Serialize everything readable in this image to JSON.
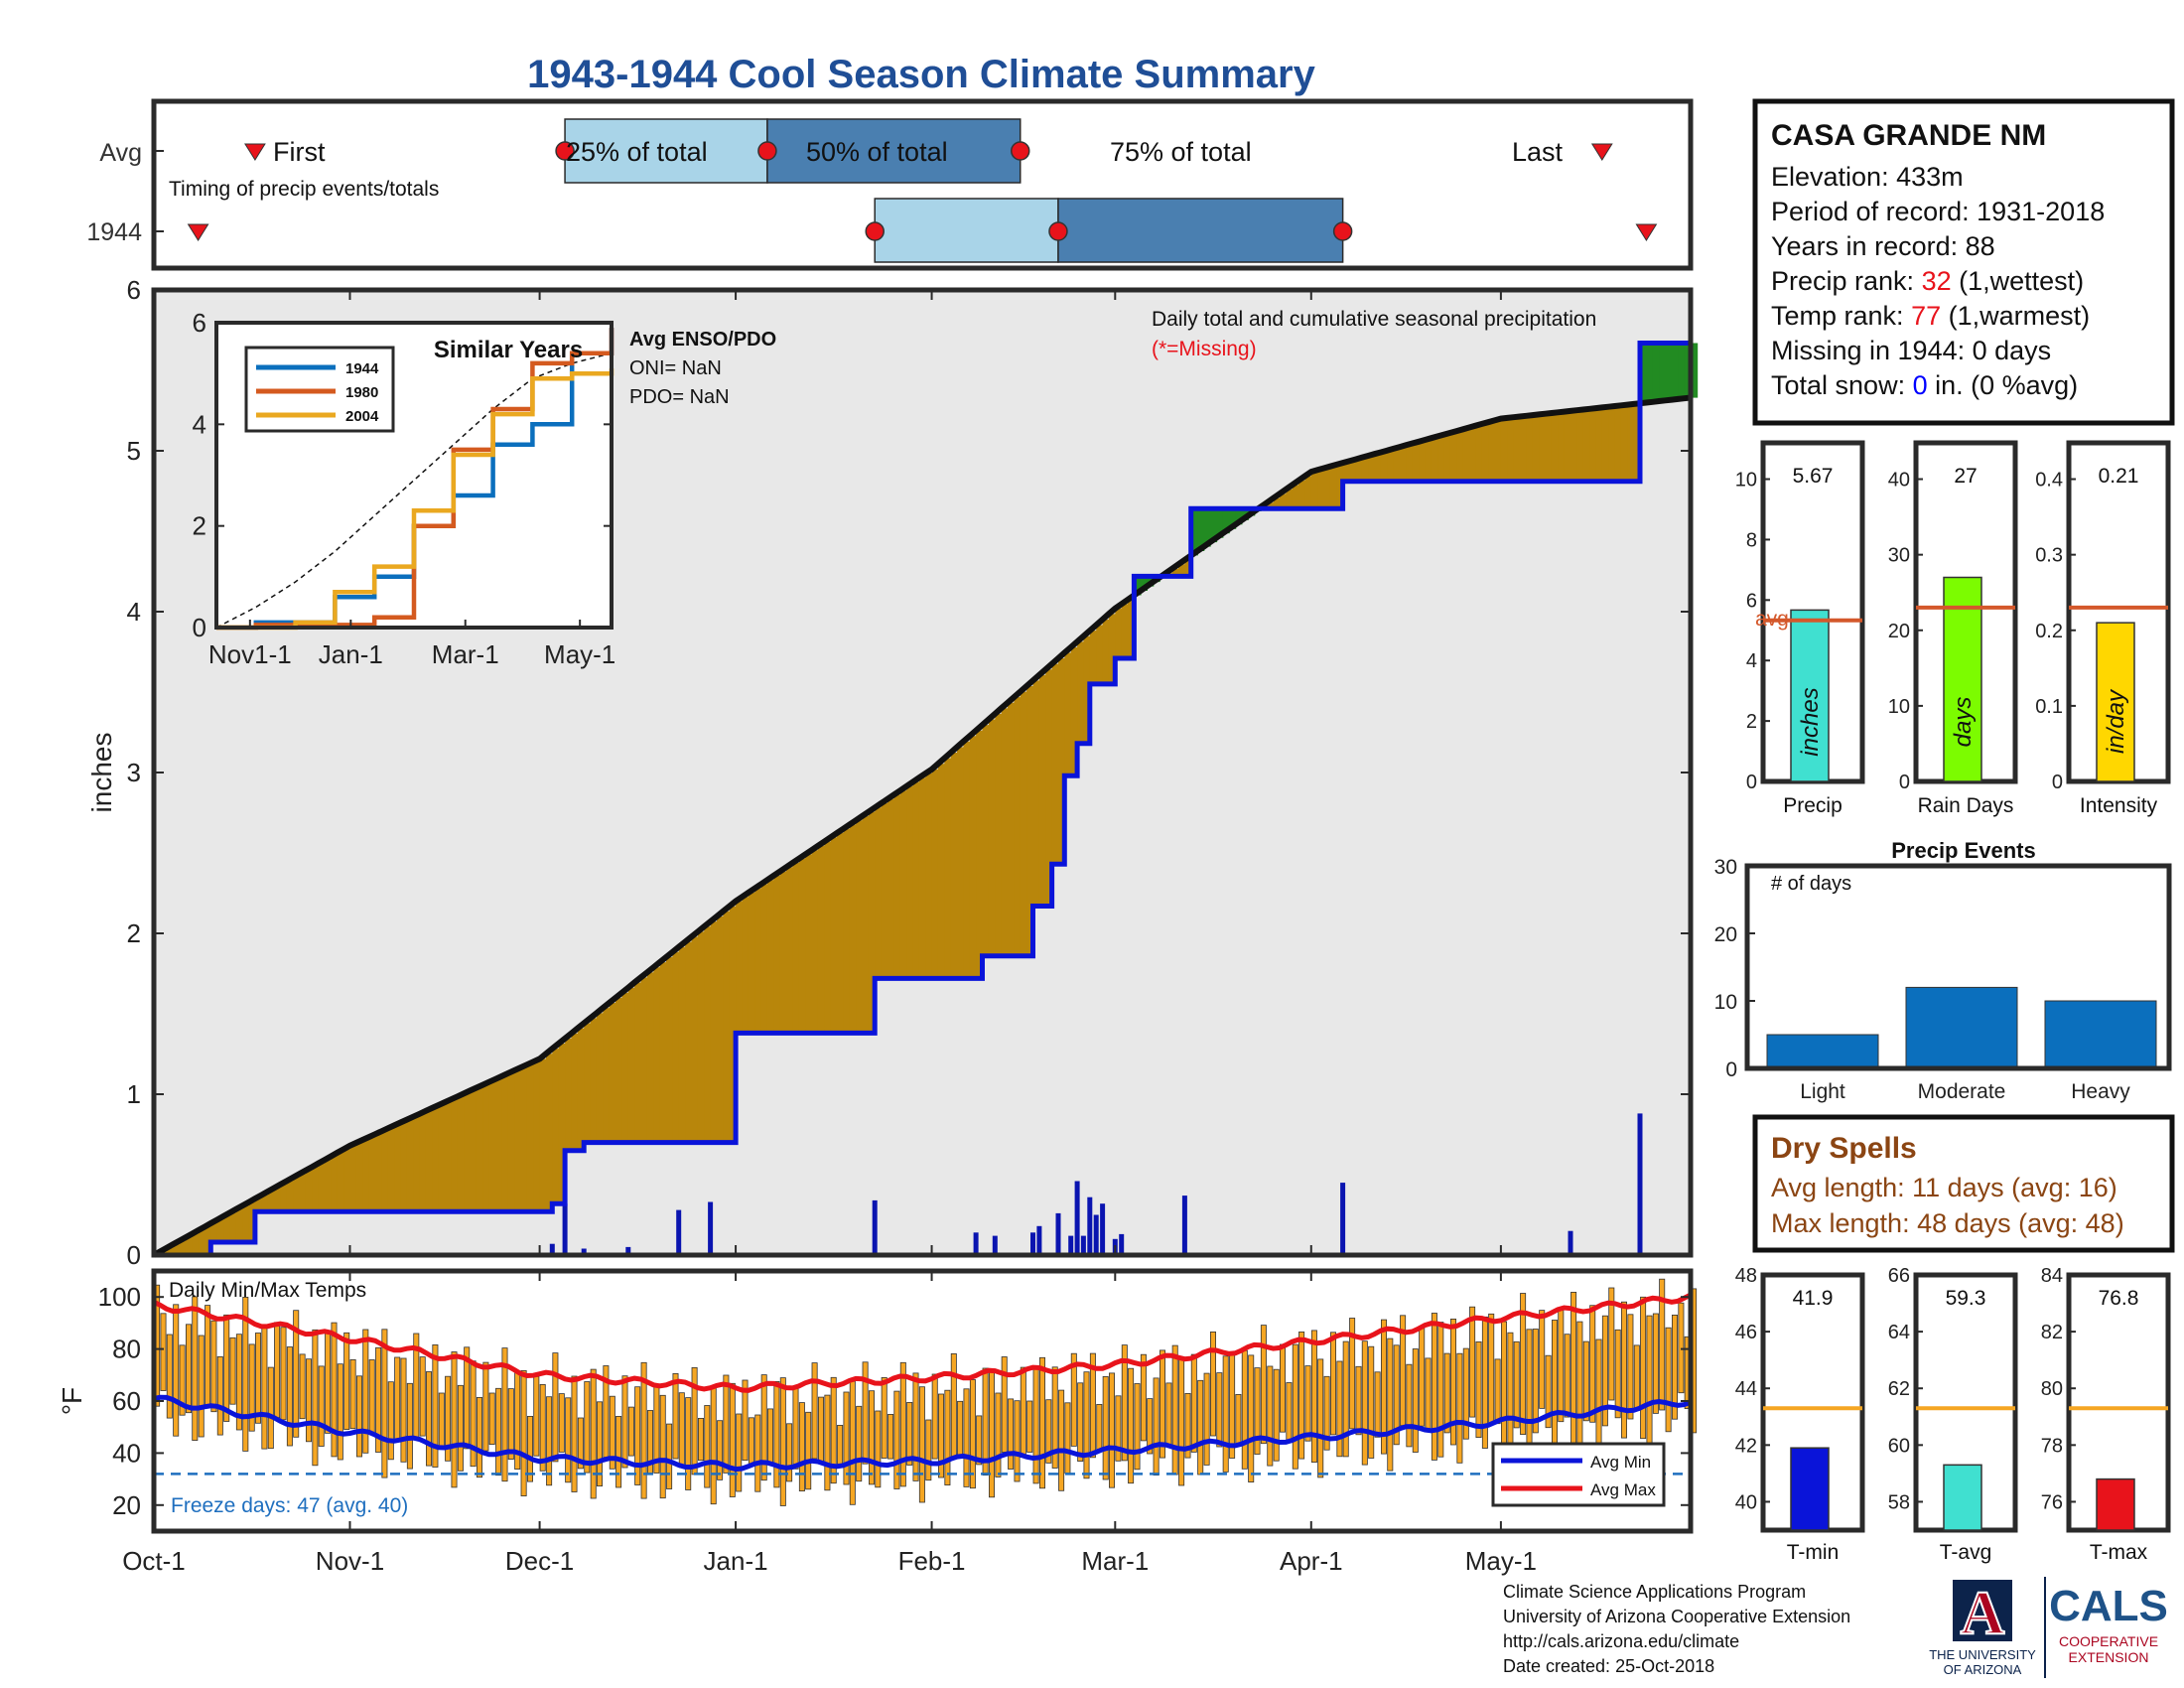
{
  "title": "1943-1944 Cool Season Climate Summary",
  "colors": {
    "title": "#1f4e96",
    "frame": "#2a2a2a",
    "light_blue": "#a9d4e8",
    "mid_blue": "#4a7fb0",
    "marker_red": "#e8131b",
    "brown": "#b8860b",
    "light_gray": "#e8e8e8",
    "green": "#228b22",
    "obs_blue": "#0a14d9",
    "avg_orange": "#d4582b",
    "precip_bar": "#40e0d0",
    "days_bar": "#7cfc00",
    "intensity_bar": "#ffd700",
    "event_bar": "#0b6fbd",
    "temp_bar": "#f5a623",
    "dry_spell_text": "#8b4513",
    "rank_red": "#e8131b",
    "snow_blue": "#0000ff",
    "freeze_blue": "#1f6fbf",
    "tavg_orange": "#f5a623"
  },
  "timing_panel": {
    "rows": [
      "Avg",
      "1944"
    ],
    "caption": "Timing of precip events/totals",
    "labels": {
      "first": "First",
      "p25": "25% of total",
      "p50": "50% of total",
      "p75": "75% of total",
      "last": "Last"
    }
  },
  "main_panel": {
    "ylabel": "inches",
    "yticks": [
      "0",
      "1",
      "2",
      "3",
      "4",
      "5",
      "6"
    ],
    "caption": "Daily total and cumulative seasonal precipitation",
    "missing_note": "(*=Missing)"
  },
  "inset": {
    "title": "Similar Years",
    "legend": [
      "1944",
      "1980",
      "2004"
    ],
    "yticks": [
      "0",
      "2",
      "4",
      "6"
    ],
    "xticks": [
      "Nov1-1",
      "Jan-1",
      "Mar-1",
      "May-1"
    ],
    "enso_title": "Avg ENSO/PDO",
    "oni": "ONI= NaN",
    "pdo": "PDO= NaN"
  },
  "temp_panel": {
    "title": "Daily Min/Max Temps",
    "ylabel": "°F",
    "yticks": [
      "20",
      "40",
      "60",
      "80",
      "100"
    ],
    "freeze": "Freeze days: 47 (avg. 40)",
    "legend": [
      "Avg Min",
      "Avg Max"
    ]
  },
  "xaxis": {
    "ticks": [
      "Oct-1",
      "Nov-1",
      "Dec-1",
      "Jan-1",
      "Feb-1",
      "Mar-1",
      "Apr-1",
      "May-1"
    ]
  },
  "station": {
    "name": "CASA GRANDE NM",
    "elevation": "Elevation: 433m",
    "period": "Period of record: 1931-2018",
    "years": "Years in record: 88",
    "precip_rank_label": "Precip rank: ",
    "precip_rank_value": "32",
    "precip_rank_note": " (1,wettest)",
    "temp_rank_label": "Temp rank: ",
    "temp_rank_value": "77",
    "temp_rank_note": " (1,warmest)",
    "missing": "Missing in 1944: 0 days",
    "snow_label": "Total snow: ",
    "snow_value": "0",
    "snow_note": " in. (0 %avg)"
  },
  "mini_precip": [
    {
      "label": "Precip",
      "value_text": "5.67",
      "bar_text": "inches",
      "avg_text": "avg",
      "yticks": [
        "0",
        "2",
        "4",
        "6",
        "8",
        "10"
      ]
    },
    {
      "label": "Rain Days",
      "value_text": "27",
      "bar_text": "days",
      "yticks": [
        "0",
        "10",
        "20",
        "30",
        "40"
      ]
    },
    {
      "label": "Intensity",
      "value_text": "0.21",
      "bar_text": "in/day",
      "yticks": [
        "0",
        "0.1",
        "0.2",
        "0.3",
        "0.4"
      ]
    }
  ],
  "events": {
    "title": "Precip Events",
    "caption": "# of days",
    "yticks": [
      "0",
      "10",
      "20",
      "30"
    ],
    "categories": [
      "Light",
      "Moderate",
      "Heavy"
    ]
  },
  "dry_spells": {
    "title": "Dry Spells",
    "avg": "Avg length: 11 days (avg: 16)",
    "max": "Max length: 48 days (avg: 48)"
  },
  "mini_temp": [
    {
      "label": "T-min",
      "value_text": "41.9",
      "yticks": [
        "40",
        "42",
        "44",
        "46",
        "48"
      ]
    },
    {
      "label": "T-avg",
      "value_text": "59.3",
      "yticks": [
        "58",
        "60",
        "62",
        "64",
        "66"
      ]
    },
    {
      "label": "T-max",
      "value_text": "76.8",
      "yticks": [
        "76",
        "78",
        "80",
        "82",
        "84"
      ]
    }
  ],
  "footer": {
    "line1": "Climate Science Applications Program",
    "line2": "University of Arizona Cooperative Extension",
    "line3": "http://cals.arizona.edu/climate",
    "line4": " Date created: 25-Oct-2018"
  },
  "logos": {
    "ua_letter": "A",
    "ua_line1": "THE UNIVERSITY",
    "ua_line2": "OF ARIZONA",
    "cals": "CALS",
    "cals_line1": "COOPERATIVE",
    "cals_line2": "EXTENSION"
  },
  "chart_data": [
    {
      "type": "area",
      "title": "Daily total and cumulative seasonal precipitation",
      "ylabel": "inches",
      "ylim": [
        0,
        6
      ],
      "xlim": [
        "Oct-1",
        "May-31"
      ],
      "avg_cumulative": {
        "x": [
          "Oct-1",
          "Nov-1",
          "Dec-1",
          "Jan-1",
          "Feb-1",
          "Mar-1",
          "Apr-1",
          "May-1",
          "May-31"
        ],
        "y": [
          0,
          0.68,
          1.22,
          2.2,
          3.02,
          4.02,
          4.87,
          5.2,
          5.33
        ]
      },
      "obs_cumulative_1944": {
        "x": [
          "Oct-1",
          "Oct-4",
          "Oct-10",
          "Oct-17",
          "Dec-3",
          "Dec-3",
          "Dec-5",
          "Dec-8",
          "Dec-8",
          "Dec-11",
          "Dec-15",
          "Dec-23",
          "Dec-28",
          "Jan-1",
          "Jan-23",
          "Jan-23",
          "Feb-8",
          "Feb-9",
          "Feb-11",
          "Feb-17",
          "Feb-19",
          "Feb-20",
          "Feb-20",
          "Feb-22",
          "Feb-24",
          "Feb-26",
          "Feb-28",
          "Mar-1",
          "Mar-4",
          "Mar-4",
          "Mar-12",
          "Mar-13",
          "Mar-20",
          "Apr-6",
          "Apr-16",
          "Apr-21",
          "May-12",
          "May-23",
          "May-24",
          "May-31"
        ],
        "y": [
          0,
          0,
          0.08,
          0.27,
          0.27,
          0.32,
          0.65,
          0.65,
          0.7,
          0.7,
          0.7,
          0.7,
          0.7,
          1.38,
          1.38,
          1.72,
          1.72,
          1.86,
          1.86,
          2.17,
          2.17,
          2.43,
          2.43,
          2.98,
          3.18,
          3.55,
          3.55,
          3.71,
          3.71,
          4.22,
          4.22,
          4.64,
          4.64,
          4.81,
          4.81,
          4.81,
          4.81,
          5.67,
          5.67,
          5.67
        ]
      },
      "daily_precip": [
        {
          "date": "Dec-3",
          "value": 0.07
        },
        {
          "date": "Dec-5",
          "value": 0.32
        },
        {
          "date": "Dec-8",
          "value": 0.04
        },
        {
          "date": "Dec-15",
          "value": 0.05
        },
        {
          "date": "Dec-23",
          "value": 0.28
        },
        {
          "date": "Dec-28",
          "value": 0.33
        },
        {
          "date": "Jan-23",
          "value": 0.34
        },
        {
          "date": "Feb-8",
          "value": 0.14
        },
        {
          "date": "Feb-11",
          "value": 0.12
        },
        {
          "date": "Feb-17",
          "value": 0.14
        },
        {
          "date": "Feb-18",
          "value": 0.18
        },
        {
          "date": "Feb-21",
          "value": 0.26
        },
        {
          "date": "Feb-23",
          "value": 0.12
        },
        {
          "date": "Feb-24",
          "value": 0.46
        },
        {
          "date": "Feb-25",
          "value": 0.12
        },
        {
          "date": "Feb-26",
          "value": 0.36
        },
        {
          "date": "Feb-27",
          "value": 0.25
        },
        {
          "date": "Feb-28",
          "value": 0.32
        },
        {
          "date": "Mar-1",
          "value": 0.1
        },
        {
          "date": "Mar-2",
          "value": 0.13
        },
        {
          "date": "Mar-12",
          "value": 0.37
        },
        {
          "date": "Apr-6",
          "value": 0.45
        },
        {
          "date": "May-12",
          "value": 0.15
        },
        {
          "date": "May-23",
          "value": 0.88
        }
      ]
    },
    {
      "type": "line",
      "title": "Similar Years",
      "ylim": [
        0,
        6
      ],
      "series": [
        {
          "name": "1944",
          "values": [
            0,
            0.1,
            0.1,
            0.6,
            1.0,
            2.0,
            2.6,
            3.6,
            4.0,
            5.4,
            5.9
          ]
        },
        {
          "name": "1980",
          "values": [
            0,
            0.05,
            0.05,
            0.05,
            0.2,
            2.0,
            3.5,
            4.3,
            5.2,
            5.4,
            5.9
          ]
        },
        {
          "name": "2004",
          "values": [
            0,
            0,
            0.1,
            0.7,
            1.2,
            2.3,
            3.4,
            4.2,
            4.9,
            5.0,
            5.1
          ]
        }
      ]
    },
    {
      "type": "bar",
      "title": "Daily Min/Max Temps",
      "ylabel": "°F",
      "ylim": [
        10,
        110
      ],
      "avg_min": {
        "x": [
          "Oct-1",
          "Nov-1",
          "Dec-1",
          "Jan-1",
          "Feb-1",
          "Mar-1",
          "Apr-1",
          "May-1",
          "May-31"
        ],
        "y": [
          61,
          48,
          38,
          35,
          37,
          41,
          46,
          52,
          60
        ]
      },
      "avg_max": {
        "x": [
          "Oct-1",
          "Nov-1",
          "Dec-1",
          "Jan-1",
          "Feb-1",
          "Mar-1",
          "Apr-1",
          "May-1",
          "May-31"
        ],
        "y": [
          97,
          84,
          70,
          65,
          69,
          74,
          83,
          92,
          100
        ]
      },
      "freeze_line": 32
    },
    {
      "type": "bar",
      "categories": [
        "Precip",
        "Rain Days",
        "Intensity"
      ],
      "values": [
        5.67,
        27,
        0.21
      ],
      "averages": [
        5.33,
        23,
        0.23
      ]
    },
    {
      "type": "bar",
      "title": "Precip Events",
      "categories": [
        "Light",
        "Moderate",
        "Heavy"
      ],
      "values": [
        5,
        12,
        10
      ],
      "ylim": [
        0,
        30
      ]
    },
    {
      "type": "bar",
      "categories": [
        "T-min",
        "T-avg",
        "T-max"
      ],
      "values": [
        41.9,
        59.3,
        76.8
      ],
      "averages": [
        43.3,
        61.3,
        79.3
      ]
    }
  ]
}
